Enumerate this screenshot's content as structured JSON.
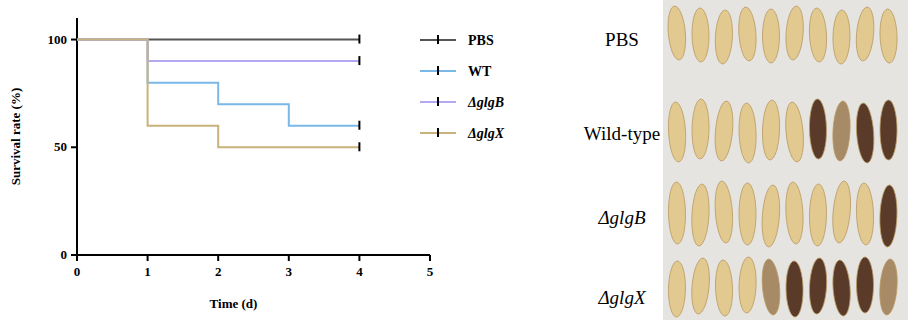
{
  "chart_data": {
    "type": "line",
    "line_style": "step",
    "marker": "censor",
    "x_label": "Time (d)",
    "y_label": "Survival rate (%)",
    "x": [
      0,
      1,
      2,
      3,
      4
    ],
    "xlim": [
      0,
      5
    ],
    "xticks": [
      0,
      1,
      2,
      3,
      4,
      5
    ],
    "ylim": [
      0,
      110
    ],
    "yticks": [
      0,
      50,
      100
    ],
    "grid": false,
    "legend": "right",
    "series": [
      {
        "name": "PBS",
        "color": "#555555",
        "values": [
          100,
          100,
          100,
          100,
          100
        ]
      },
      {
        "name": "WT",
        "color": "#7ab8e8",
        "values": [
          100,
          80,
          70,
          60,
          60
        ]
      },
      {
        "name": "ΔglgB",
        "color": "#b3a9f2",
        "values": [
          100,
          90,
          90,
          90,
          90
        ]
      },
      {
        "name": "ΔglgX",
        "color": "#c9b27c",
        "values": [
          100,
          60,
          50,
          50,
          50
        ]
      }
    ]
  },
  "photo": {
    "row_labels": [
      "PBS",
      "Wild-type",
      "ΔglgB",
      "ΔglgX"
    ]
  }
}
